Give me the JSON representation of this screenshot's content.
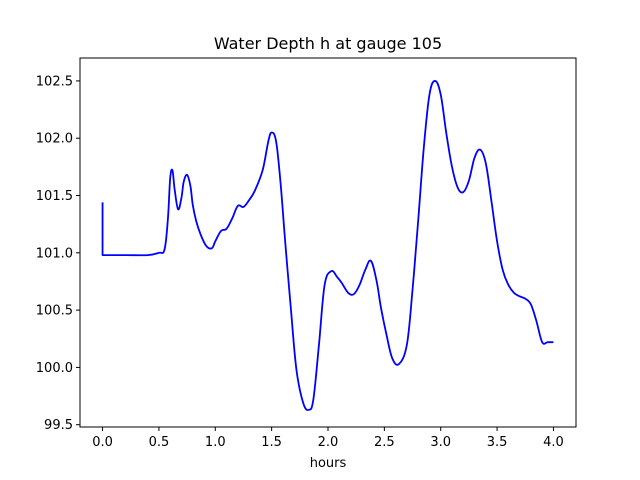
{
  "chart_data": {
    "type": "line",
    "title": "Water Depth h at gauge 105",
    "xlabel": "hours",
    "ylabel": "",
    "xlim": [
      -0.2,
      4.2
    ],
    "ylim": [
      99.48,
      102.7
    ],
    "grid": false,
    "legend": "none",
    "x_ticks": [
      0.0,
      0.5,
      1.0,
      1.5,
      2.0,
      2.5,
      3.0,
      3.5,
      4.0
    ],
    "x_tick_labels": [
      "0.0",
      "0.5",
      "1.0",
      "1.5",
      "2.0",
      "2.5",
      "3.0",
      "3.5",
      "4.0"
    ],
    "y_ticks": [
      99.5,
      100.0,
      100.5,
      101.0,
      101.5,
      102.0,
      102.5
    ],
    "y_tick_labels": [
      "99.5",
      "100.0",
      "100.5",
      "101.0",
      "101.5",
      "102.0",
      "102.5"
    ],
    "series": [
      {
        "name": "",
        "color": "#0000ff",
        "x": [
          0.0,
          0.0,
          0.2,
          0.4,
          0.5,
          0.55,
          0.58,
          0.6,
          0.62,
          0.64,
          0.67,
          0.7,
          0.72,
          0.75,
          0.78,
          0.8,
          0.83,
          0.87,
          0.92,
          0.97,
          1.0,
          1.05,
          1.1,
          1.15,
          1.2,
          1.25,
          1.3,
          1.35,
          1.42,
          1.47,
          1.5,
          1.54,
          1.58,
          1.62,
          1.67,
          1.72,
          1.78,
          1.83,
          1.87,
          1.92,
          1.97,
          2.03,
          2.08,
          2.12,
          2.18,
          2.23,
          2.28,
          2.33,
          2.38,
          2.43,
          2.47,
          2.52,
          2.57,
          2.63,
          2.7,
          2.75,
          2.8,
          2.85,
          2.9,
          2.95,
          3.0,
          3.05,
          3.1,
          3.15,
          3.2,
          3.25,
          3.3,
          3.35,
          3.4,
          3.45,
          3.5,
          3.55,
          3.6,
          3.65,
          3.7,
          3.75,
          3.8,
          3.85,
          3.9,
          3.95,
          4.0
        ],
        "y": [
          101.44,
          100.98,
          100.98,
          100.98,
          101.0,
          101.03,
          101.3,
          101.65,
          101.72,
          101.55,
          101.38,
          101.48,
          101.62,
          101.68,
          101.58,
          101.42,
          101.28,
          101.16,
          101.06,
          101.04,
          101.1,
          101.19,
          101.21,
          101.3,
          101.41,
          101.4,
          101.46,
          101.54,
          101.72,
          101.97,
          102.05,
          101.97,
          101.6,
          101.1,
          100.52,
          99.98,
          99.69,
          99.63,
          99.72,
          100.2,
          100.72,
          100.84,
          100.79,
          100.74,
          100.65,
          100.64,
          100.72,
          100.85,
          100.93,
          100.76,
          100.52,
          100.28,
          100.08,
          100.03,
          100.2,
          100.68,
          101.28,
          101.92,
          102.38,
          102.5,
          102.38,
          102.04,
          101.75,
          101.57,
          101.53,
          101.63,
          101.83,
          101.9,
          101.78,
          101.45,
          101.1,
          100.85,
          100.72,
          100.65,
          100.62,
          100.6,
          100.55,
          100.4,
          100.22,
          100.22,
          100.22
        ]
      }
    ]
  }
}
